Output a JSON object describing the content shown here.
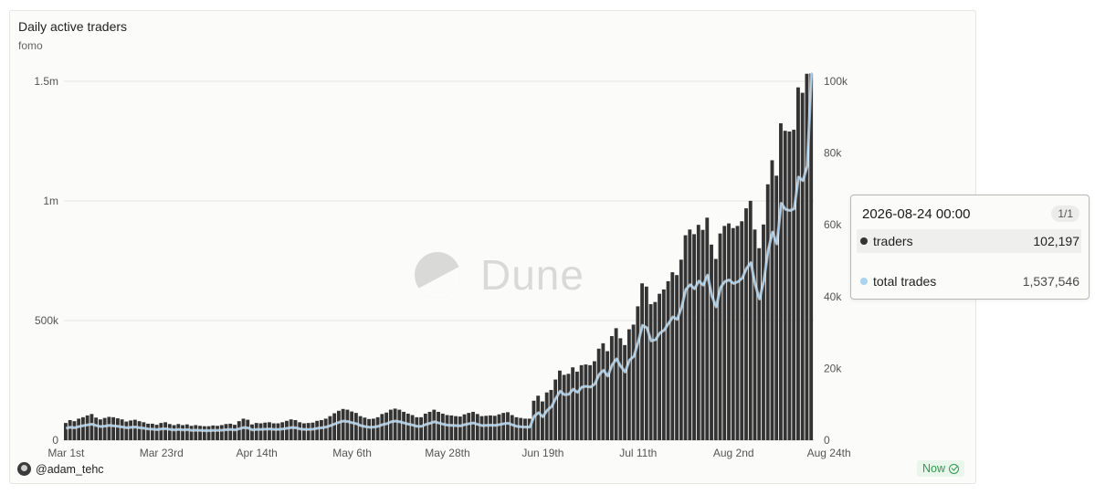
{
  "card": {
    "title": "Daily active traders",
    "subtitle": "fomo",
    "watermark": "Dune",
    "author": "@adam_tehc",
    "status": "Now"
  },
  "tooltip": {
    "date": "2026-08-24 00:00",
    "page": "1/1",
    "rows": [
      {
        "label": "traders",
        "value": "102,197",
        "color": "#333333"
      },
      {
        "label": "total trades",
        "value": "1,537,546",
        "color": "#a9d3f2"
      }
    ]
  },
  "chart_data": {
    "type": "bar",
    "title": "Daily active traders",
    "subtitle": "fomo",
    "x_ticks": [
      "Mar 1st",
      "Mar 23rd",
      "Apr 14th",
      "May 6th",
      "May 28th",
      "Jun 19th",
      "Jul 11th",
      "Aug 2nd",
      "Aug 24th"
    ],
    "y_left": {
      "ticks": [
        "0",
        "500k",
        "1m",
        "1.5m"
      ],
      "tick_values": [
        0,
        500000,
        1000000,
        1500000
      ],
      "range": [
        0,
        1500000
      ]
    },
    "y_right": {
      "ticks": [
        "0",
        "20k",
        "40k",
        "60k",
        "80k",
        "100k"
      ],
      "tick_values": [
        0,
        20000,
        40000,
        60000,
        80000,
        100000
      ],
      "range": [
        0,
        100000
      ]
    },
    "grid": true,
    "colors": {
      "bars": "#333333",
      "line": "#a9d3f2"
    },
    "series": [
      {
        "name": "traders",
        "type": "bar",
        "axis": "right",
        "values": [
          4800,
          5600,
          5300,
          6000,
          6400,
          6900,
          7300,
          6300,
          5800,
          6200,
          6500,
          6400,
          6100,
          5800,
          5200,
          5500,
          5700,
          5300,
          5000,
          4600,
          4600,
          4300,
          4800,
          5000,
          4500,
          4200,
          4500,
          4200,
          4400,
          4000,
          4200,
          4000,
          3900,
          3900,
          4100,
          4000,
          4200,
          4500,
          4600,
          4300,
          5300,
          6000,
          5700,
          4400,
          4800,
          4700,
          4900,
          5000,
          4700,
          4700,
          5000,
          5400,
          5800,
          5600,
          5000,
          4700,
          4800,
          4900,
          5400,
          5600,
          6000,
          6700,
          7500,
          8200,
          8700,
          8500,
          8000,
          7600,
          6700,
          6300,
          5900,
          6000,
          6400,
          7300,
          7700,
          8500,
          8800,
          8500,
          7900,
          7400,
          7000,
          6400,
          6400,
          7400,
          7900,
          8500,
          7900,
          7400,
          7000,
          6900,
          6700,
          6600,
          7200,
          7600,
          7900,
          7300,
          6700,
          6800,
          6900,
          6800,
          7200,
          7600,
          7800,
          7000,
          6400,
          6200,
          6000,
          6000,
          11000,
          12400,
          10800,
          13300,
          14000,
          16900,
          19400,
          18200,
          18500,
          20300,
          19100,
          20900,
          21100,
          20900,
          22000,
          25500,
          27000,
          24800,
          29000,
          31200,
          28400,
          26500,
          30900,
          32200,
          37300,
          43700,
          42800,
          37900,
          38500,
          40800,
          42000,
          44300,
          46800,
          46000,
          50300,
          57100,
          58700,
          57400,
          60000,
          58600,
          62000,
          54500,
          50500,
          57600,
          59700,
          60400,
          59100,
          59700,
          61000,
          64600,
          66700,
          58700,
          53500,
          60100,
          71300,
          78000,
          73700,
          88300,
          86200,
          86000,
          86500,
          98300,
          96800,
          102100,
          102197
        ]
      },
      {
        "name": "total trades",
        "type": "line",
        "axis": "left",
        "values": [
          50000,
          54000,
          52000,
          57000,
          61000,
          64000,
          67000,
          61000,
          57000,
          59000,
          62000,
          60000,
          58000,
          55000,
          52000,
          54000,
          55000,
          52000,
          50000,
          47000,
          46000,
          44000,
          47000,
          48000,
          45000,
          43000,
          45000,
          43000,
          44000,
          41000,
          42000,
          41000,
          40000,
          40000,
          41000,
          41000,
          42000,
          44000,
          45000,
          43000,
          48000,
          53000,
          51000,
          43000,
          45000,
          45000,
          46000,
          47000,
          45000,
          45000,
          47000,
          50000,
          53000,
          52000,
          47000,
          45000,
          45000,
          46000,
          50000,
          52000,
          55000,
          61000,
          68000,
          75000,
          80000,
          78000,
          73000,
          69000,
          61000,
          57000,
          54000,
          55000,
          58000,
          65000,
          69000,
          77000,
          80000,
          77000,
          72000,
          67000,
          63000,
          58000,
          58000,
          66000,
          71000,
          77000,
          72000,
          67000,
          63000,
          62000,
          61000,
          60000,
          65000,
          69000,
          72000,
          66000,
          61000,
          62000,
          63000,
          62000,
          65000,
          69000,
          71000,
          64000,
          58000,
          56000,
          55000,
          55000,
          100000,
          115000,
          98000,
          125000,
          140000,
          175000,
          205000,
          190000,
          192000,
          213000,
          200000,
          222000,
          225000,
          222000,
          235000,
          275000,
          292000,
          268000,
          315000,
          340000,
          308000,
          285000,
          335000,
          350000,
          410000,
          480000,
          470000,
          415000,
          420000,
          448000,
          460000,
          488000,
          515000,
          505000,
          555000,
          630000,
          650000,
          633000,
          665000,
          648000,
          690000,
          603000,
          557000,
          638000,
          663000,
          670000,
          655000,
          662000,
          677000,
          718000,
          742000,
          650000,
          590000,
          667000,
          795000,
          870000,
          820000,
          990000,
          965000,
          960000,
          967000,
          1100000,
          1085000,
          1145000,
          1537546
        ]
      }
    ]
  }
}
